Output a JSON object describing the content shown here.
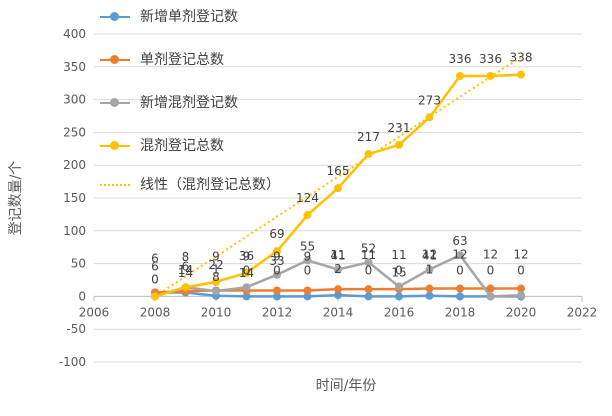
{
  "chart_data": {
    "type": "line",
    "xlabel": "时间/年份",
    "ylabel": "登记数量/个",
    "xlim": [
      2006,
      2022
    ],
    "ylim": [
      -100,
      400
    ],
    "xticks": [
      2006,
      2008,
      2010,
      2012,
      2014,
      2016,
      2018,
      2020,
      2022
    ],
    "yticks": [
      -100,
      -50,
      0,
      50,
      100,
      150,
      200,
      250,
      300,
      350,
      400
    ],
    "grid": "horizontal",
    "legend_position": "top-left",
    "x": [
      2008,
      2009,
      2010,
      2011,
      2012,
      2013,
      2014,
      2015,
      2016,
      2017,
      2018,
      2019,
      2020
    ],
    "series": [
      {
        "name": "新增单剂登记数",
        "color": "#5b9bd5",
        "values": [
          6,
          6,
          1,
          0,
          0,
          0,
          2,
          0,
          0,
          1,
          0,
          0,
          0
        ],
        "labels": [
          "6",
          "6",
          "1",
          "0",
          "0",
          "0",
          "2",
          "0",
          "0",
          "1",
          "0",
          "0",
          "0"
        ]
      },
      {
        "name": "单剂登记总数",
        "color": "#ed7d31",
        "values": [
          6,
          8,
          9,
          9,
          9,
          9,
          11,
          11,
          11,
          12,
          12,
          12,
          12
        ],
        "labels": [
          "6",
          "8",
          "9",
          "9",
          "9",
          "9",
          "11",
          "11",
          "11",
          "12",
          "12",
          "12",
          "12"
        ]
      },
      {
        "name": "新增混剂登记数",
        "color": "#a5a5a5",
        "values": [
          0,
          14,
          8,
          14,
          33,
          55,
          41,
          52,
          15,
          41,
          63,
          0,
          2
        ],
        "labels": [
          "",
          "14",
          "8",
          "14",
          "33",
          "55",
          "41",
          "52",
          "15",
          "41",
          "63",
          "",
          ""
        ]
      },
      {
        "name": "混剂登记总数",
        "color": "#ffc000",
        "values": [
          0,
          14,
          22,
          36,
          69,
          124,
          165,
          217,
          231,
          273,
          336,
          336,
          338
        ],
        "labels": [
          "0",
          "14",
          "22",
          "36",
          "69",
          "124",
          "165",
          "217",
          "231",
          "273",
          "336",
          "336",
          "338"
        ]
      }
    ],
    "trendline": {
      "name": "线性（混剂登记总数）",
      "color": "#ffc000",
      "of_series": "混剂登记总数",
      "values": [
        0,
        365
      ]
    }
  }
}
